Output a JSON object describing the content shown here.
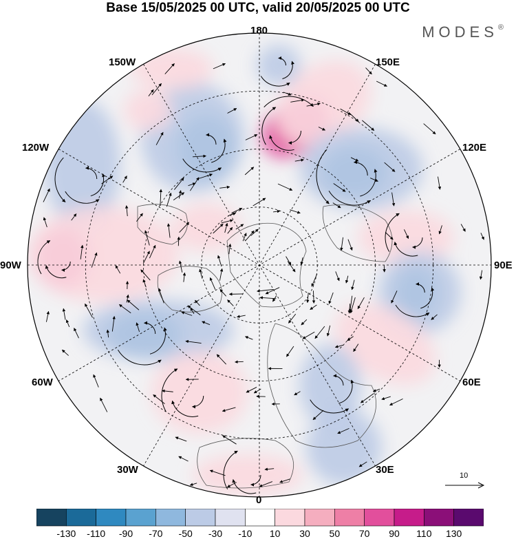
{
  "title": "Base 15/05/2025 00 UTC, valid 20/05/2025 00 UTC",
  "brand": "MODES",
  "brand_mark": "®",
  "longitude_labels": {
    "lon_180": "180",
    "lon_150E": "150E",
    "lon_120E": "120E",
    "lon_90E": "90E",
    "lon_60E": "60E",
    "lon_30E": "30E",
    "lon_0": "0",
    "lon_30W": "30W",
    "lon_60W": "60W",
    "lon_90W": "90W",
    "lon_120W": "120W",
    "lon_150W": "150W"
  },
  "vector_scale": {
    "label": "10"
  },
  "colorbar": {
    "ticks": [
      "-130",
      "-110",
      "-90",
      "-70",
      "-50",
      "-30",
      "-10",
      "10",
      "30",
      "50",
      "70",
      "90",
      "110",
      "130"
    ],
    "colors": [
      "#16435f",
      "#1b6a99",
      "#2f89c0",
      "#5aa2d0",
      "#8fb8de",
      "#bccbe6",
      "#e0e2f0",
      "#ffffff",
      "#fbd9df",
      "#f5aebf",
      "#ee7fa6",
      "#e24f9c",
      "#c61c8a",
      "#8b0f78",
      "#5a0a6e"
    ]
  },
  "colors": {
    "negative_strong": "#2f89c0",
    "negative_weak": "#bccbe6",
    "positive_weak": "#fbd9df",
    "positive_strong": "#e24f9c",
    "land_outline": "#555555"
  }
}
